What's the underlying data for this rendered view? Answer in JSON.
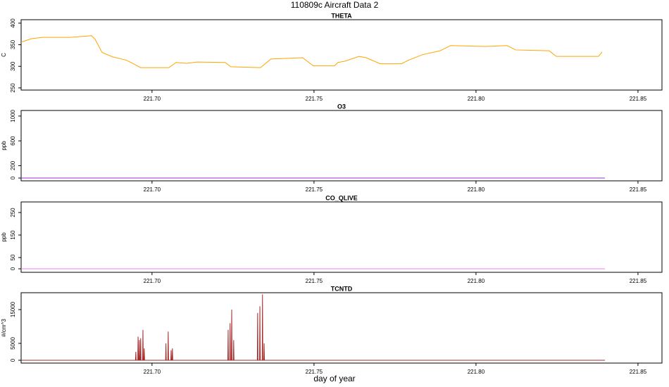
{
  "title": "110809c   Aircraft Data 2",
  "xlabel": "day of year",
  "chart_data": [
    {
      "type": "line",
      "title": "THETA",
      "ylabel": "C",
      "color": "#ffa500",
      "x": [
        221.6596,
        221.6628,
        221.6661,
        221.6748,
        221.6813,
        221.6824,
        221.6846,
        221.6878,
        221.6922,
        221.6965,
        221.7052,
        221.7074,
        221.7107,
        221.7139,
        221.7226,
        221.7243,
        221.7335,
        221.7367,
        221.7465,
        221.7498,
        221.7563,
        221.7574,
        221.7596,
        221.7639,
        221.7661,
        221.7704,
        221.777,
        221.7791,
        221.7835,
        221.7889,
        221.7922,
        221.803,
        221.8096,
        221.8122,
        221.8226,
        221.8248,
        221.8378,
        221.8389
      ],
      "values": [
        356,
        364,
        367,
        367,
        371,
        363,
        332,
        322,
        314,
        297,
        297,
        309,
        307,
        310,
        309,
        299,
        297,
        317,
        320,
        301,
        301,
        309,
        312,
        323,
        320,
        306,
        306,
        314,
        327,
        336,
        348,
        346,
        348,
        338,
        336,
        323,
        323,
        333
      ],
      "xlim": [
        221.6596,
        221.8574
      ],
      "xticks": [
        {
          "value": 221.7,
          "label": "221.70"
        },
        {
          "value": 221.75,
          "label": "221.75"
        },
        {
          "value": 221.8,
          "label": "221.80"
        },
        {
          "value": 221.85,
          "label": "221.85"
        }
      ],
      "ylim": [
        245,
        408
      ],
      "yticks": [
        250,
        300,
        350,
        400
      ]
    },
    {
      "type": "line",
      "title": "O3",
      "ylabel": "ppb",
      "color": "#9932cc",
      "x": [
        221.6596,
        221.8398
      ],
      "values": [
        0,
        0
      ],
      "xlim": [
        221.6596,
        221.8574
      ],
      "xticks": [
        {
          "value": 221.7,
          "label": "221.70"
        },
        {
          "value": 221.75,
          "label": "221.75"
        },
        {
          "value": 221.8,
          "label": "221.80"
        },
        {
          "value": 221.85,
          "label": "221.85"
        }
      ],
      "ylim": [
        -45,
        1090
      ],
      "yticks": [
        0,
        200,
        600,
        1000
      ]
    },
    {
      "type": "line",
      "title": "CO_QLIVE",
      "ylabel": "ppb",
      "color": "#ee82ee",
      "x": [
        221.6596,
        221.8398
      ],
      "values": [
        0,
        0
      ],
      "xlim": [
        221.6596,
        221.8574
      ],
      "xticks": [
        {
          "value": 221.7,
          "label": "221.70"
        },
        {
          "value": 221.75,
          "label": "221.75"
        },
        {
          "value": 221.8,
          "label": "221.80"
        },
        {
          "value": 221.85,
          "label": "221.85"
        }
      ],
      "ylim": [
        -15.6,
        297
      ],
      "yticks": [
        0,
        50,
        150,
        250
      ]
    },
    {
      "type": "line",
      "title": "TCNTD",
      "ylabel": "#/cm^3",
      "color": "#a52a2a",
      "x": [
        221.6596,
        221.6949,
        221.695,
        221.6951,
        221.6956,
        221.6957,
        221.6958,
        221.696,
        221.6961,
        221.6962,
        221.6964,
        221.6965,
        221.6966,
        221.6971,
        221.6972,
        221.6973,
        221.6975,
        221.6976,
        221.6977,
        221.7042,
        221.7043,
        221.7044,
        221.7049,
        221.705,
        221.7051,
        221.7058,
        221.7059,
        221.706,
        221.7062,
        221.7063,
        221.7064,
        221.7234,
        221.7235,
        221.7236,
        221.724,
        221.7241,
        221.7242,
        221.7245,
        221.7246,
        221.7247,
        221.7251,
        221.7252,
        221.7253,
        221.7325,
        221.7326,
        221.7327,
        221.7332,
        221.7333,
        221.7334,
        221.734,
        221.7341,
        221.7342,
        221.7345,
        221.7346,
        221.7347,
        221.8398
      ],
      "values": [
        0,
        0,
        2500,
        0,
        0,
        7000,
        0,
        0,
        6000,
        0,
        0,
        6500,
        0,
        0,
        9000,
        0,
        0,
        3500,
        0,
        0,
        5000,
        0,
        0,
        8500,
        0,
        0,
        3000,
        0,
        0,
        3500,
        0,
        0,
        9000,
        0,
        0,
        11000,
        0,
        0,
        15000,
        0,
        0,
        6000,
        0,
        0,
        14000,
        0,
        0,
        16000,
        0,
        0,
        19500,
        0,
        0,
        5000,
        0,
        0
      ],
      "xlim": [
        221.6596,
        221.8574
      ],
      "xticks": [
        {
          "value": 221.7,
          "label": "221.70"
        },
        {
          "value": 221.75,
          "label": "221.75"
        },
        {
          "value": 221.8,
          "label": "221.80"
        },
        {
          "value": 221.85,
          "label": "221.85"
        }
      ],
      "ylim": [
        -833,
        20000
      ],
      "yticks": [
        0,
        5000,
        15000
      ]
    }
  ]
}
